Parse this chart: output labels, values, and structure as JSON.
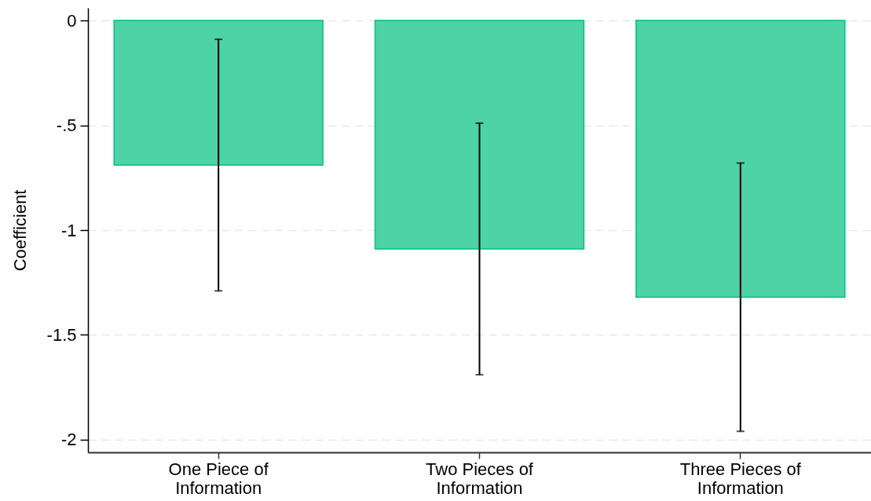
{
  "chart_data": {
    "type": "bar",
    "ylabel": "Coefficient",
    "categories": [
      "One Piece of Information",
      "Two Pieces of Information",
      "Three Pieces of Information"
    ],
    "values": [
      -0.69,
      -1.09,
      -1.32
    ],
    "errors": [
      0.6,
      0.6,
      0.64
    ],
    "color": "#4ed3a6",
    "ylim": [
      -2.06,
      0.06
    ],
    "yticks": [
      0,
      {
        "value": -0.5,
        "label": "-.5"
      },
      -1,
      -1.5,
      -2
    ],
    "grid": "y"
  }
}
